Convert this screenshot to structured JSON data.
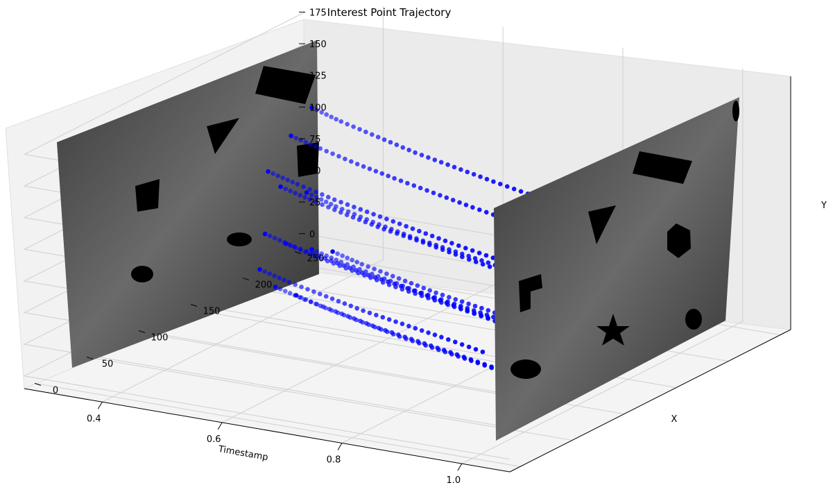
{
  "chart_data": {
    "type": "scatter",
    "projection": "3d",
    "title": "Interest Point Trajectory",
    "axes": {
      "x": {
        "label": "Timestamp",
        "ticks": [
          "1.0",
          "0.8",
          "0.6",
          "0.4"
        ],
        "range": [
          0.27,
          1.08
        ],
        "direction": "decreasing"
      },
      "y": {
        "label": "X",
        "ticks": [
          "0",
          "50",
          "100",
          "150",
          "200",
          "250"
        ],
        "range": [
          -10,
          260
        ]
      },
      "z": {
        "label": "Y",
        "ticks": [
          "0",
          "25",
          "50",
          "75",
          "100",
          "125",
          "150",
          "175"
        ],
        "range": [
          -10,
          190
        ]
      }
    },
    "grid": true,
    "marker_color": "#0000ff",
    "image_planes": [
      {
        "timestamp": 1.0,
        "description": "grayscale camera frame with black shapes"
      },
      {
        "timestamp": 0.35,
        "description": "grayscale camera frame with black shapes"
      }
    ],
    "series": [
      {
        "points": [
          [
            1.0,
            60,
            172
          ],
          [
            0.9,
            78,
            168
          ],
          [
            0.8,
            98,
            163
          ],
          [
            0.7,
            118,
            158
          ],
          [
            0.6,
            140,
            153
          ],
          [
            0.5,
            162,
            148
          ],
          [
            0.42,
            180,
            145
          ]
        ]
      },
      {
        "points": [
          [
            1.0,
            40,
            160
          ],
          [
            0.9,
            58,
            156
          ],
          [
            0.8,
            78,
            151
          ],
          [
            0.7,
            98,
            146
          ],
          [
            0.6,
            120,
            140
          ],
          [
            0.5,
            142,
            135
          ],
          [
            0.42,
            160,
            131
          ]
        ]
      },
      {
        "points": [
          [
            1.0,
            20,
            140
          ],
          [
            0.9,
            38,
            136
          ],
          [
            0.8,
            58,
            131
          ],
          [
            0.7,
            78,
            126
          ],
          [
            0.6,
            98,
            121
          ],
          [
            0.5,
            120,
            116
          ],
          [
            0.42,
            138,
            112
          ]
        ]
      },
      {
        "points": [
          [
            1.0,
            30,
            125
          ],
          [
            0.9,
            48,
            121
          ],
          [
            0.8,
            68,
            116
          ],
          [
            0.7,
            88,
            110
          ],
          [
            0.6,
            110,
            104
          ],
          [
            0.5,
            132,
            99
          ],
          [
            0.42,
            150,
            95
          ]
        ]
      },
      {
        "points": [
          [
            1.0,
            55,
            110
          ],
          [
            0.9,
            73,
            106
          ],
          [
            0.8,
            93,
            100
          ],
          [
            0.7,
            113,
            94
          ],
          [
            0.6,
            135,
            88
          ],
          [
            0.5,
            157,
            83
          ],
          [
            0.42,
            175,
            80
          ]
        ]
      },
      {
        "points": [
          [
            1.0,
            15,
            95
          ],
          [
            0.9,
            33,
            91
          ],
          [
            0.8,
            53,
            86
          ],
          [
            0.7,
            73,
            80
          ],
          [
            0.6,
            95,
            74
          ],
          [
            0.5,
            117,
            68
          ],
          [
            0.42,
            135,
            64
          ]
        ]
      },
      {
        "points": [
          [
            1.0,
            35,
            80
          ],
          [
            0.9,
            53,
            76
          ],
          [
            0.8,
            73,
            70
          ],
          [
            0.7,
            93,
            64
          ],
          [
            0.6,
            115,
            58
          ],
          [
            0.5,
            137,
            52
          ],
          [
            0.42,
            155,
            48
          ]
        ]
      },
      {
        "points": [
          [
            1.0,
            60,
            65
          ],
          [
            0.9,
            78,
            61
          ],
          [
            0.8,
            98,
            55
          ],
          [
            0.7,
            118,
            49
          ],
          [
            0.6,
            140,
            43
          ],
          [
            0.5,
            162,
            37
          ],
          [
            0.42,
            180,
            33
          ]
        ]
      },
      {
        "points": [
          [
            1.0,
            10,
            70
          ],
          [
            0.9,
            28,
            66
          ],
          [
            0.8,
            48,
            60
          ],
          [
            0.7,
            68,
            54
          ],
          [
            0.6,
            90,
            48
          ],
          [
            0.5,
            112,
            42
          ],
          [
            0.42,
            130,
            38
          ]
        ]
      },
      {
        "points": [
          [
            1.0,
            25,
            50
          ],
          [
            0.9,
            43,
            46
          ],
          [
            0.8,
            63,
            40
          ],
          [
            0.7,
            83,
            34
          ],
          [
            0.6,
            105,
            28
          ],
          [
            0.5,
            127,
            22
          ],
          [
            0.42,
            145,
            18
          ]
        ]
      },
      {
        "points": [
          [
            1.0,
            45,
            35
          ],
          [
            0.9,
            63,
            31
          ],
          [
            0.8,
            83,
            25
          ],
          [
            0.7,
            103,
            19
          ],
          [
            0.6,
            125,
            13
          ],
          [
            0.5,
            147,
            7
          ],
          [
            0.42,
            165,
            3
          ]
        ]
      },
      {
        "points": [
          [
            1.0,
            80,
            55
          ],
          [
            0.9,
            98,
            51
          ],
          [
            0.8,
            118,
            45
          ],
          [
            0.7,
            138,
            39
          ],
          [
            0.6,
            160,
            33
          ],
          [
            0.5,
            182,
            27
          ],
          [
            0.42,
            200,
            23
          ]
        ]
      }
    ]
  }
}
